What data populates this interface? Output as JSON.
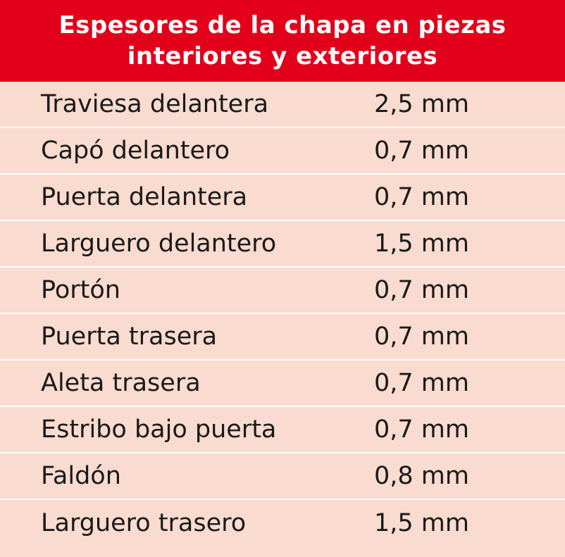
{
  "header": {
    "title_line1": "Espesores de la chapa en piezas",
    "title_line2": "interiores y exteriores"
  },
  "colors": {
    "header_bg": "#e2001a",
    "row_bg": "#f9dbcf",
    "divider": "#ffffff"
  },
  "rows": [
    {
      "part": "Traviesa delantera",
      "value": "2,5 mm"
    },
    {
      "part": "Capó delantero",
      "value": "0,7 mm"
    },
    {
      "part": "Puerta delantera",
      "value": "0,7 mm"
    },
    {
      "part": "Larguero delantero",
      "value": "1,5 mm"
    },
    {
      "part": "Portón",
      "value": "0,7 mm"
    },
    {
      "part": "Puerta trasera",
      "value": "0,7 mm"
    },
    {
      "part": "Aleta trasera",
      "value": "0,7 mm"
    },
    {
      "part": "Estribo bajo puerta",
      "value": "0,7 mm"
    },
    {
      "part": "Faldón",
      "value": "0,8 mm"
    },
    {
      "part": "Larguero trasero",
      "value": "1,5 mm"
    }
  ]
}
